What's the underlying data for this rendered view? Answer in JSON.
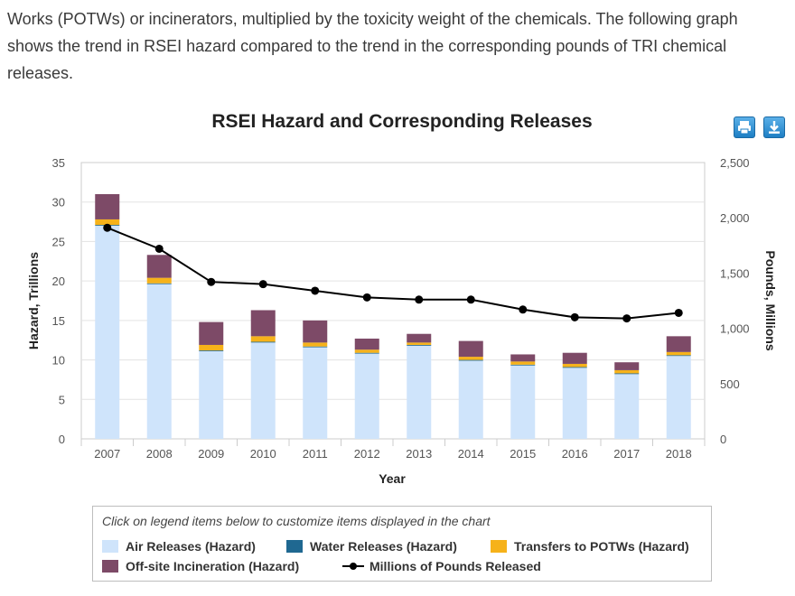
{
  "intro_text": "Works (POTWs) or incinerators, multiplied by the toxicity weight of the chemicals. The following graph shows the trend in RSEI hazard compared to the trend in the corresponding pounds of TRI chemical releases.",
  "toolbar": {
    "print_icon": "printer-icon",
    "download_icon": "download-icon"
  },
  "legend": {
    "note": "Click on legend items below to customize items displayed in the chart",
    "items": [
      {
        "label": "Air Releases (Hazard)",
        "color": "#cfe4fb"
      },
      {
        "label": "Water Releases (Hazard)",
        "color": "#1f6891"
      },
      {
        "label": "Transfers to POTWs (Hazard)",
        "color": "#f6b21a"
      },
      {
        "label": "Off-site Incineration (Hazard)",
        "color": "#7d4a67"
      },
      {
        "label": "Millions of Pounds Released",
        "color": "#000000"
      }
    ]
  },
  "chart_data": {
    "type": "bar",
    "stacked": true,
    "title": "RSEI Hazard and Corresponding Releases",
    "xlabel": "Year",
    "ylabel": "Hazard, Trillions",
    "y2label": "Pounds, Millions",
    "ylim": [
      0,
      35
    ],
    "yticks": [
      0,
      5,
      10,
      15,
      20,
      25,
      30,
      35
    ],
    "y2lim": [
      0,
      2500
    ],
    "y2ticks": [
      "0",
      "500",
      "1,000",
      "1,500",
      "2,000",
      "2,500"
    ],
    "categories": [
      "2007",
      "2008",
      "2009",
      "2010",
      "2011",
      "2012",
      "2013",
      "2014",
      "2015",
      "2016",
      "2017",
      "2018"
    ],
    "series": [
      {
        "name": "Air Releases (Hazard)",
        "color": "#cfe4fb",
        "values": [
          27.0,
          19.6,
          11.1,
          12.2,
          11.6,
          10.8,
          11.8,
          9.9,
          9.3,
          9.0,
          8.2,
          10.5
        ]
      },
      {
        "name": "Water Releases (Hazard)",
        "color": "#1f6891",
        "values": [
          0.1,
          0.1,
          0.1,
          0.1,
          0.1,
          0.1,
          0.1,
          0.1,
          0.1,
          0.1,
          0.1,
          0.1
        ]
      },
      {
        "name": "Transfers to POTWs (Hazard)",
        "color": "#f6b21a",
        "values": [
          0.7,
          0.7,
          0.7,
          0.7,
          0.5,
          0.4,
          0.3,
          0.4,
          0.4,
          0.4,
          0.4,
          0.4
        ]
      },
      {
        "name": "Off-site Incineration (Hazard)",
        "color": "#7d4a67",
        "values": [
          3.2,
          2.9,
          2.9,
          3.3,
          2.8,
          1.4,
          1.1,
          2.0,
          0.9,
          1.4,
          1.0,
          2.0
        ]
      },
      {
        "name": "Millions of Pounds Released",
        "type": "line",
        "axis": "y2",
        "color": "#000000",
        "values": [
          1910,
          1720,
          1420,
          1400,
          1340,
          1280,
          1260,
          1260,
          1170,
          1100,
          1090,
          1140
        ]
      }
    ],
    "grid": "horizontal",
    "legend_position": "bottom"
  }
}
